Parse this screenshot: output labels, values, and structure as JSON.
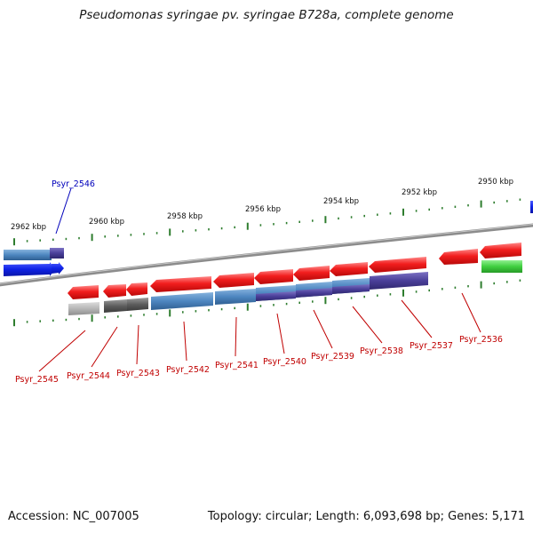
{
  "title": "Pseudomonas syringae pv. syringae B728a, complete genome",
  "footer": {
    "accession": "Accession: NC_007005",
    "topology": "Topology: circular; Length: 6,093,698 bp; Genes: 5,171"
  },
  "colors": {
    "cds": "#f21e1e",
    "highlight": "#0f22e6",
    "rna_green": "#3fcf3f",
    "gene": "#4d86c0",
    "gene_purple": "#4a3f99",
    "gene_gray": "#5e5e5e",
    "gene_lightgray": "#b6b6b6",
    "tick": "#2e7d2e",
    "backbone": "#8c8c8c",
    "label_red": "#c00000",
    "label_blue": "#0000bb"
  },
  "scale_labels": [
    "2962 kbp",
    "2960 kbp",
    "2958 kbp",
    "2956 kbp",
    "2954 kbp",
    "2952 kbp",
    "2950 kbp"
  ],
  "genes": [
    {
      "label": "Psyr_2546",
      "color": "blue"
    },
    {
      "label": "Psyr_2545",
      "color": "red"
    },
    {
      "label": "Psyr_2544",
      "color": "red"
    },
    {
      "label": "Psyr_2543",
      "color": "red"
    },
    {
      "label": "Psyr_2542",
      "color": "red"
    },
    {
      "label": "Psyr_2541",
      "color": "red"
    },
    {
      "label": "Psyr_2540",
      "color": "red"
    },
    {
      "label": "Psyr_2539",
      "color": "red"
    },
    {
      "label": "Psyr_2538",
      "color": "red"
    },
    {
      "label": "Psyr_2537",
      "color": "red"
    },
    {
      "label": "Psyr_2536",
      "color": "red"
    }
  ]
}
